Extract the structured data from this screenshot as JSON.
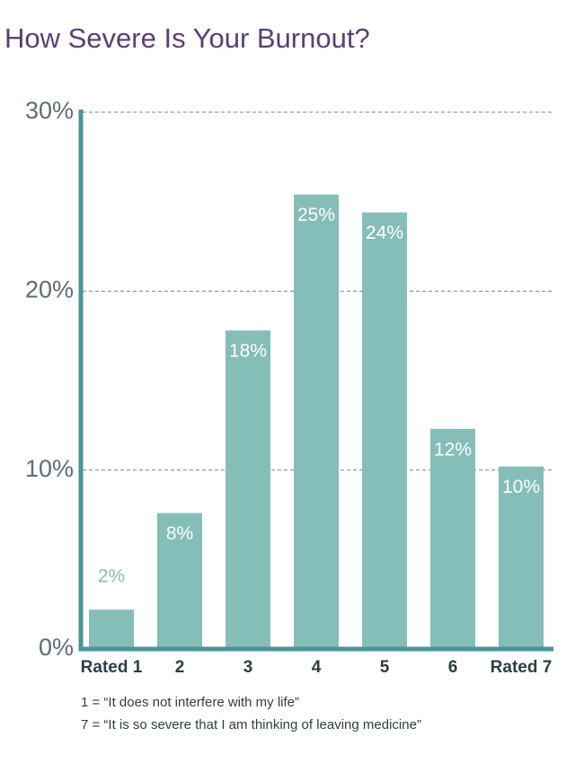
{
  "chart_data": {
    "type": "bar",
    "title": "How Severe Is Your Burnout?",
    "categories": [
      "Rated 1",
      "2",
      "3",
      "4",
      "5",
      "6",
      "Rated 7"
    ],
    "values": [
      2.2,
      7.6,
      17.8,
      25.4,
      24.4,
      12.3,
      10.2
    ],
    "value_labels": [
      "2%",
      "8%",
      "18%",
      "25%",
      "24%",
      "12%",
      "10%"
    ],
    "color": "#85bdb9",
    "ylim": [
      0,
      30
    ],
    "yticks": [
      {
        "value": 0,
        "label": "0%"
      },
      {
        "value": 10,
        "label": "10%"
      },
      {
        "value": 20,
        "label": "20%"
      },
      {
        "value": 30,
        "label": "30%"
      }
    ],
    "grid": true,
    "notes": [
      "1 = “It does not interfere with my life”",
      "7 = “It is so severe that I am thinking of leaving medicine”"
    ]
  }
}
